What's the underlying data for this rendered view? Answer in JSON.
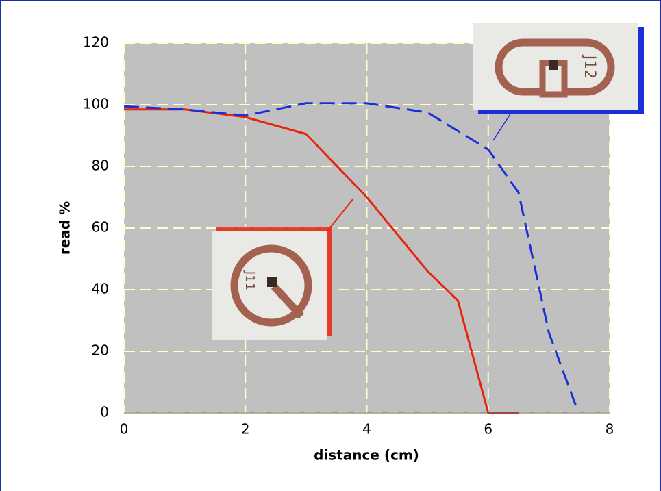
{
  "chart_data": {
    "type": "line",
    "xlabel": "distance (cm)",
    "ylabel": "read %",
    "xlim": [
      0,
      8
    ],
    "ylim": [
      0,
      120
    ],
    "xticks": [
      0,
      2,
      4,
      6,
      8
    ],
    "yticks": [
      0,
      20,
      40,
      60,
      80,
      100,
      120
    ],
    "grid": true,
    "series": [
      {
        "color": "#e8230c",
        "dash": false,
        "x": [
          0,
          1,
          2,
          3,
          4,
          5,
          5.5,
          6,
          6.5
        ],
        "values": [
          98.5,
          98.5,
          96,
          90.5,
          70,
          46,
          36.5,
          0,
          0
        ]
      },
      {
        "color": "#1a2fd8",
        "dash": true,
        "x": [
          0,
          1,
          2,
          3,
          4,
          5,
          6,
          6.5,
          7,
          7.45
        ],
        "values": [
          99.5,
          98.5,
          96.5,
          100.5,
          100.5,
          97.5,
          85.5,
          71.5,
          26,
          2
        ]
      }
    ]
  },
  "tag_labels": [
    "J11",
    "J12"
  ]
}
